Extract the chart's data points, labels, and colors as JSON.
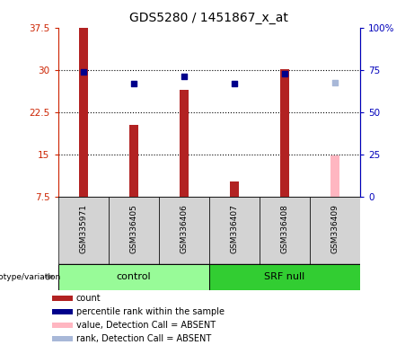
{
  "title": "GDS5280 / 1451867_x_at",
  "samples": [
    "GSM335971",
    "GSM336405",
    "GSM336406",
    "GSM336407",
    "GSM336408",
    "GSM336409"
  ],
  "count_values": [
    37.5,
    20.2,
    26.5,
    10.2,
    30.1,
    14.8
  ],
  "percentile_values": [
    74.0,
    67.0,
    71.0,
    67.0,
    72.5,
    67.5
  ],
  "absent_flags": [
    false,
    false,
    false,
    false,
    false,
    true
  ],
  "ylim_left": [
    7.5,
    37.5
  ],
  "ylim_right": [
    0,
    100
  ],
  "yticks_left": [
    7.5,
    15.0,
    22.5,
    30.0,
    37.5
  ],
  "yticks_right": [
    0,
    25,
    50,
    75,
    100
  ],
  "ytick_labels_left": [
    "7.5",
    "15",
    "22.5",
    "30",
    "37.5"
  ],
  "ytick_labels_right": [
    "0",
    "25",
    "50",
    "75",
    "100%"
  ],
  "grid_values": [
    15.0,
    22.5,
    30.0
  ],
  "bar_color_present": "#B22222",
  "bar_color_absent": "#FFB6C1",
  "dot_color_present": "#00008B",
  "dot_color_absent": "#A8B8D8",
  "bar_width": 0.18,
  "left_color": "#CC2200",
  "right_color": "#0000BB",
  "control_color": "#98FB98",
  "srf_color": "#32CD32",
  "sample_box_color": "#D3D3D3",
  "group_label": "genotype/variation",
  "legend_items": [
    {
      "color": "#B22222",
      "label": "count"
    },
    {
      "color": "#00008B",
      "label": "percentile rank within the sample"
    },
    {
      "color": "#FFB6C1",
      "label": "value, Detection Call = ABSENT"
    },
    {
      "color": "#A8B8D8",
      "label": "rank, Detection Call = ABSENT"
    }
  ]
}
